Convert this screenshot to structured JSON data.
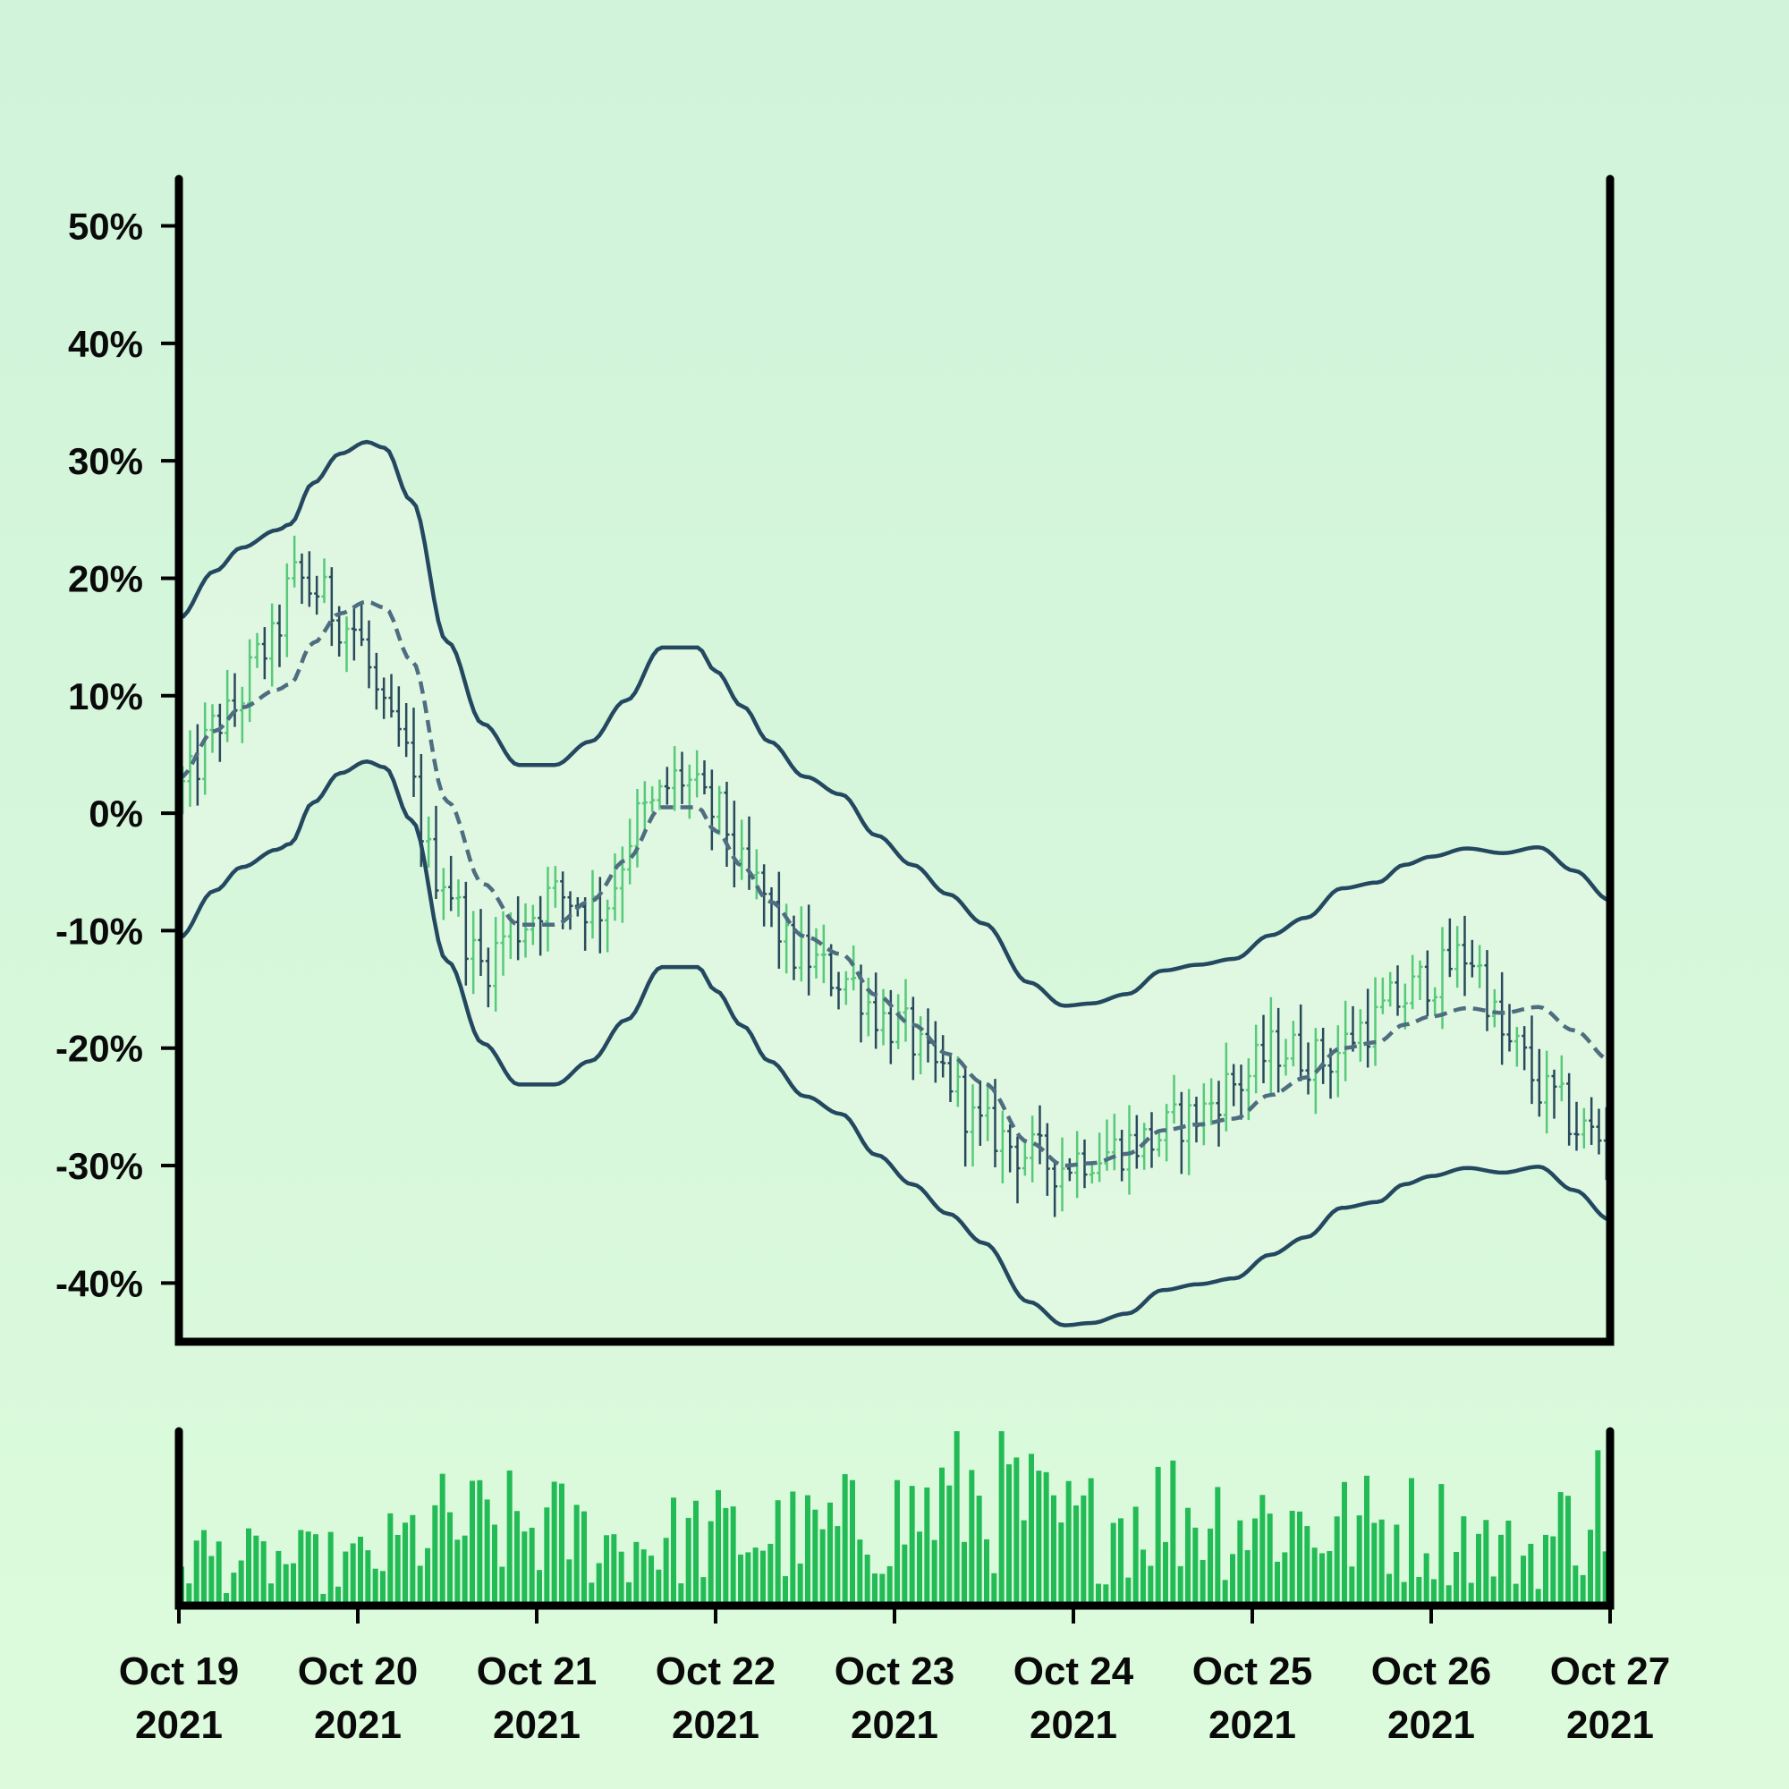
{
  "chart_data": {
    "type": "ohlc",
    "title": "",
    "xlabel": "",
    "ylabel": "",
    "ylim": [
      -45,
      54
    ],
    "xlim": [
      "2021-10-19 00:00",
      "2021-10-27 00:00"
    ],
    "y_ticks": [
      50,
      40,
      30,
      20,
      10,
      0,
      -10,
      -20,
      -30,
      -40
    ],
    "y_tick_labels": [
      "50%",
      "40%",
      "30%",
      "20%",
      "10%",
      "0%",
      "-10%",
      "-20%",
      "-30%",
      "-40%"
    ],
    "x_ticks": [
      {
        "date": "2021-10-19",
        "month_day": "Oct 19",
        "year": "2021"
      },
      {
        "date": "2021-10-20",
        "month_day": "Oct 20",
        "year": "2021"
      },
      {
        "date": "2021-10-21",
        "month_day": "Oct 21",
        "year": "2021"
      },
      {
        "date": "2021-10-22",
        "month_day": "Oct 22",
        "year": "2021"
      },
      {
        "date": "2021-10-23",
        "month_day": "Oct 23",
        "year": "2021"
      },
      {
        "date": "2021-10-24",
        "month_day": "Oct 24",
        "year": "2021"
      },
      {
        "date": "2021-10-25",
        "month_day": "Oct 25",
        "year": "2021"
      },
      {
        "date": "2021-10-26",
        "month_day": "Oct 26",
        "year": "2021"
      },
      {
        "date": "2021-10-27",
        "month_day": "Oct 27",
        "year": "2021"
      }
    ],
    "price_trend_days": [
      0,
      0.25,
      0.5,
      0.65,
      0.75,
      0.95,
      1.2,
      1.45,
      1.7,
      1.85,
      2.1,
      2.35,
      2.6,
      2.8,
      3.0,
      3.2,
      3.45,
      3.7,
      4.0,
      4.25,
      4.5,
      4.75,
      4.9,
      5.1,
      5.4,
      5.65,
      5.9,
      6.15,
      6.4,
      6.65,
      6.8,
      7.0,
      7.2,
      7.45,
      7.65,
      7.85,
      8.0
    ],
    "price_trend_values": [
      2,
      8,
      14,
      20,
      19,
      16,
      7,
      -5,
      -13,
      -10,
      -7,
      -8,
      0,
      3,
      0,
      -6,
      -12,
      -14,
      -18,
      -22,
      -27,
      -29,
      -30,
      -29,
      -28,
      -26,
      -23,
      -20,
      -21,
      -18,
      -16,
      -14,
      -12,
      -20,
      -24,
      -27,
      -28
    ],
    "sma_days": [
      0,
      0.2,
      0.35,
      0.55,
      0.62,
      0.75,
      0.9,
      1.05,
      1.15,
      1.3,
      1.5,
      1.7,
      1.9,
      2.1,
      2.3,
      2.5,
      2.7,
      2.9,
      3.0,
      3.15,
      3.3,
      3.5,
      3.7,
      3.9,
      4.1,
      4.3,
      4.5,
      4.75,
      4.95,
      5.1,
      5.3,
      5.5,
      5.7,
      5.9,
      6.1,
      6.3,
      6.5,
      6.7,
      6.85,
      7.0,
      7.2,
      7.4,
      7.6,
      7.8,
      8.0
    ],
    "sma_values": [
      3,
      7,
      9,
      10.5,
      11,
      14.5,
      17,
      18,
      17.5,
      13,
      1,
      -6,
      -9.5,
      -9.5,
      -7.5,
      -4,
      0.5,
      0.5,
      -1.5,
      -4.5,
      -7.5,
      -10.5,
      -12,
      -15.5,
      -18,
      -20.5,
      -23,
      -28,
      -30,
      -29.8,
      -29,
      -27,
      -26.5,
      -26,
      -24,
      -22.5,
      -20,
      -19.5,
      -18,
      -17.3,
      -16.6,
      -17,
      -16.5,
      -18.5,
      -21
    ],
    "band_offset": 13.6,
    "volume_max": 100,
    "volume_trend_days": [
      0,
      0.5,
      1.0,
      1.5,
      2.0,
      2.5,
      3.0,
      3.5,
      4.0,
      4.5,
      5.0,
      5.5,
      6.0,
      6.5,
      7.0,
      7.5,
      8.0
    ],
    "volume_trend_values": [
      30,
      25,
      25,
      45,
      45,
      35,
      40,
      40,
      50,
      65,
      45,
      55,
      50,
      45,
      45,
      30,
      60
    ],
    "bar_interval_hours": 1,
    "colors": {
      "bar_up": "#57c97a",
      "bar_down": "#284a5c",
      "band": "#234860",
      "sma": "#4e6d80",
      "volume": "#22bb55",
      "axis": "#000000"
    }
  }
}
